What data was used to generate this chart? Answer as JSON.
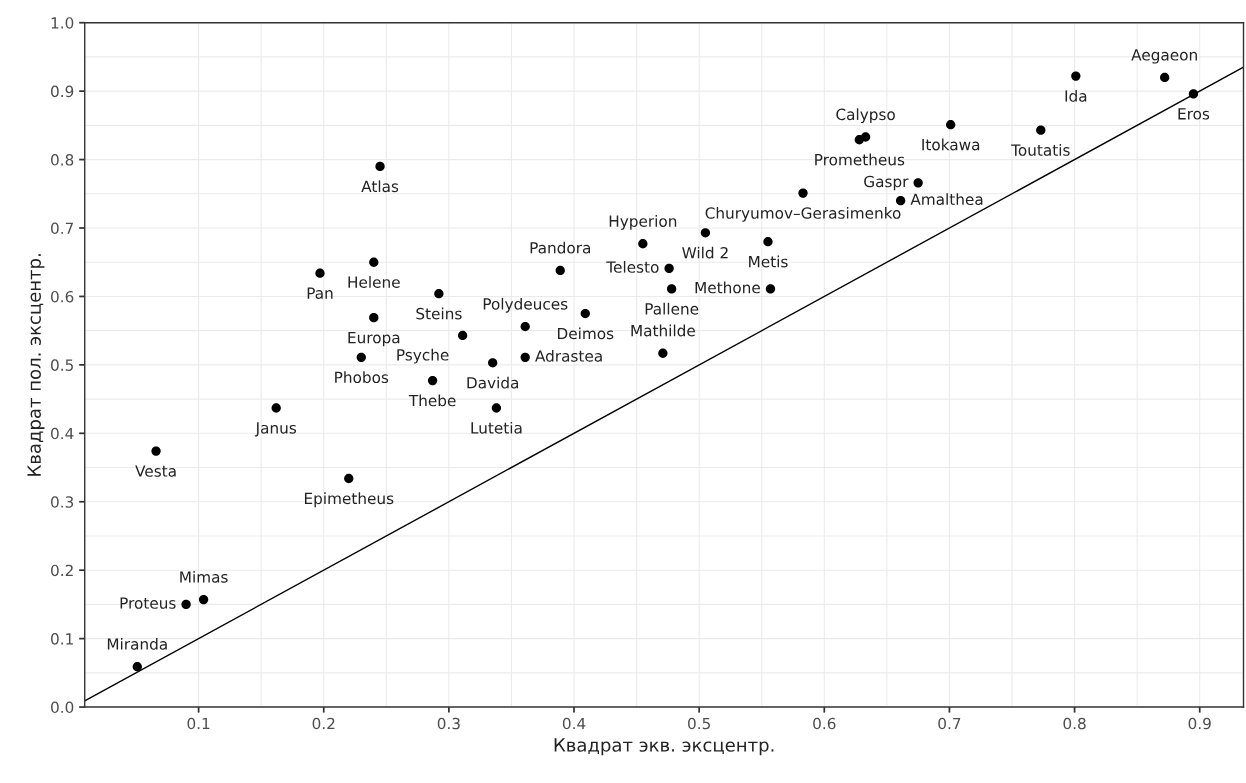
{
  "chart_data": {
    "type": "scatter",
    "xlabel": "Квадрат экв. эксцентр.",
    "ylabel": "Квадрат пол. эксцентр.",
    "xlim": [
      0.009,
      0.935
    ],
    "ylim": [
      0,
      1.0
    ],
    "xticks": [
      0.1,
      0.2,
      0.3,
      0.4,
      0.5,
      0.6,
      0.7,
      0.8,
      0.9
    ],
    "yticks": [
      {
        "value": 0,
        "label": "0.0"
      },
      0.1,
      0.2,
      0.3,
      0.4,
      0.5,
      0.6,
      0.7,
      0.8,
      0.9,
      {
        "value": 1,
        "label": "1.0"
      }
    ],
    "grid": true,
    "legend": false,
    "series": [
      {
        "marker": "circle",
        "color": "#000000",
        "x": [
          0.245,
          0.24,
          0.197,
          0.24,
          0.23,
          0.162,
          0.066,
          0.22,
          0.104,
          0.09,
          0.051,
          0.292,
          0.311,
          0.287,
          0.335,
          0.361,
          0.361,
          0.338,
          0.389,
          0.409,
          0.455,
          0.505,
          0.476,
          0.478,
          0.471,
          0.555,
          0.557,
          0.583,
          0.628,
          0.633,
          0.701,
          0.675,
          0.661,
          0.773,
          0.801,
          0.872,
          0.895
        ],
        "values": [
          0.79,
          0.65,
          0.634,
          0.569,
          0.511,
          0.437,
          0.374,
          0.334,
          0.157,
          0.15,
          0.059,
          0.604,
          0.543,
          0.477,
          0.503,
          0.511,
          0.556,
          0.437,
          0.638,
          0.575,
          0.677,
          0.693,
          0.641,
          0.611,
          0.517,
          0.68,
          0.611,
          0.751,
          0.829,
          0.833,
          0.851,
          0.766,
          0.74,
          0.843,
          0.922,
          0.92,
          0.896
        ]
      },
      {
        "type": "line",
        "color": "#000000",
        "line_style": "solid",
        "x": [
          0.009,
          0.935
        ],
        "values": [
          0.009,
          0.935
        ]
      }
    ],
    "annotations": [
      {
        "text": "Atlas",
        "x": 0.245,
        "y": 0.79
      },
      {
        "text": "Helene",
        "x": 0.24,
        "y": 0.65
      },
      {
        "text": "Pan",
        "x": 0.197,
        "y": 0.634
      },
      {
        "text": "Europa",
        "x": 0.24,
        "y": 0.569
      },
      {
        "text": "Phobos",
        "x": 0.23,
        "y": 0.511
      },
      {
        "text": "Janus",
        "x": 0.162,
        "y": 0.437
      },
      {
        "text": "Vesta",
        "x": 0.066,
        "y": 0.374
      },
      {
        "text": "Epimetheus",
        "x": 0.22,
        "y": 0.334
      },
      {
        "text": "Mimas",
        "x": 0.104,
        "y": 0.157
      },
      {
        "text": "Proteus",
        "x": 0.09,
        "y": 0.15
      },
      {
        "text": "Miranda",
        "x": 0.051,
        "y": 0.059
      },
      {
        "text": "Steins",
        "x": 0.292,
        "y": 0.604
      },
      {
        "text": "Psyche",
        "x": 0.311,
        "y": 0.543
      },
      {
        "text": "Thebe",
        "x": 0.287,
        "y": 0.477
      },
      {
        "text": "Davida",
        "x": 0.335,
        "y": 0.503
      },
      {
        "text": "Adrastea",
        "x": 0.361,
        "y": 0.511
      },
      {
        "text": "Polydeuces",
        "x": 0.361,
        "y": 0.556
      },
      {
        "text": "Lutetia",
        "x": 0.338,
        "y": 0.437
      },
      {
        "text": "Pandora",
        "x": 0.389,
        "y": 0.638
      },
      {
        "text": "Deimos",
        "x": 0.409,
        "y": 0.575
      },
      {
        "text": "Hyperion",
        "x": 0.455,
        "y": 0.677
      },
      {
        "text": "Wild 2",
        "x": 0.505,
        "y": 0.693
      },
      {
        "text": "Telesto",
        "x": 0.476,
        "y": 0.641
      },
      {
        "text": "Pallene",
        "x": 0.478,
        "y": 0.611
      },
      {
        "text": "Mathilde",
        "x": 0.471,
        "y": 0.517
      },
      {
        "text": "Metis",
        "x": 0.555,
        "y": 0.68
      },
      {
        "text": "Methone",
        "x": 0.557,
        "y": 0.611
      },
      {
        "text": "Churyumov–Gerasimenko",
        "x": 0.583,
        "y": 0.751
      },
      {
        "text": "Prometheus",
        "x": 0.628,
        "y": 0.829
      },
      {
        "text": "Calypso",
        "x": 0.633,
        "y": 0.833
      },
      {
        "text": "Itokawa",
        "x": 0.701,
        "y": 0.851
      },
      {
        "text": "Gaspr",
        "x": 0.675,
        "y": 0.766
      },
      {
        "text": "Amalthea",
        "x": 0.661,
        "y": 0.74
      },
      {
        "text": "Toutatis",
        "x": 0.773,
        "y": 0.843
      },
      {
        "text": "Ida",
        "x": 0.801,
        "y": 0.922
      },
      {
        "text": "Aegaeon",
        "x": 0.872,
        "y": 0.92
      },
      {
        "text": "Eros",
        "x": 0.895,
        "y": 0.896
      }
    ]
  }
}
